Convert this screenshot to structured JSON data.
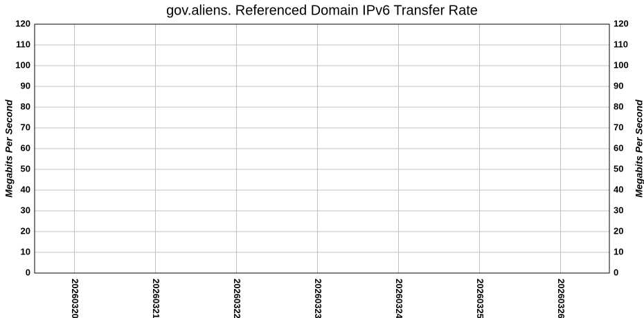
{
  "chart_data": {
    "type": "bar",
    "title": "gov.aliens. Referenced Domain IPv6 Transfer Rate",
    "y_label": "Megabits Per Second",
    "y2_label": "Megabits Per Second",
    "categories": [
      "20260320",
      "20260321",
      "20260322",
      "20260323",
      "20260324",
      "20260325",
      "20260326"
    ],
    "values": [
      0,
      0,
      0,
      0,
      0,
      0,
      0
    ],
    "color": "#000080",
    "ylim": [
      0,
      120
    ],
    "yticks": [
      0,
      10,
      20,
      30,
      40,
      50,
      60,
      70,
      80,
      90,
      100,
      110,
      120
    ],
    "y2lim": [
      0,
      120
    ],
    "y2ticks": [
      0,
      10,
      20,
      30,
      40,
      50,
      60,
      70,
      80,
      90,
      100,
      110,
      120
    ],
    "grid": true
  }
}
